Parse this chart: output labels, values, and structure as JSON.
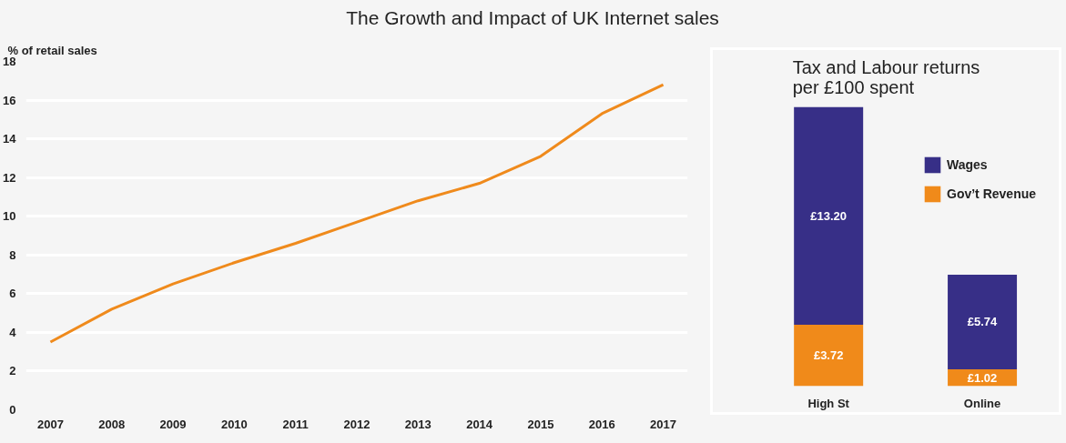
{
  "chart_data": [
    {
      "type": "line",
      "title": "The Growth and Impact of UK Internet sales",
      "ylabel": "% of retail sales",
      "x": [
        2007,
        2008,
        2009,
        2010,
        2011,
        2012,
        2013,
        2014,
        2015,
        2016,
        2017
      ],
      "series": [
        {
          "color": "#ef8a1c",
          "values": [
            3.5,
            5.2,
            6.5,
            7.6,
            8.6,
            9.7,
            10.8,
            11.7,
            13.1,
            15.3,
            16.8
          ]
        }
      ],
      "xlim": [
        2006.6,
        2017.4
      ],
      "xticks": [
        2007,
        2008,
        2009,
        2010,
        2011,
        2012,
        2013,
        2014,
        2015,
        2016,
        2017
      ],
      "ylim": [
        0,
        18
      ],
      "yticks": [
        0,
        2,
        4,
        6,
        8,
        10,
        12,
        14,
        16,
        18
      ],
      "grid": "y",
      "marker": "none",
      "line_style": "solid"
    },
    {
      "type": "bar",
      "stacked": true,
      "title": "Tax and Labour returns\nper £100 spent",
      "categories": [
        "High St",
        "Online"
      ],
      "series": [
        {
          "name": "Gov’t Revenue",
          "color": "#f08a1a",
          "values": [
            3.72,
            1.02
          ],
          "value_labels": [
            "£3.72",
            "£1.02"
          ]
        },
        {
          "name": "Wages",
          "color": "#372f87",
          "values": [
            13.2,
            5.74
          ],
          "value_labels": [
            "£13.20",
            "£5.74"
          ]
        }
      ],
      "legend": "right",
      "grid": false
    }
  ]
}
